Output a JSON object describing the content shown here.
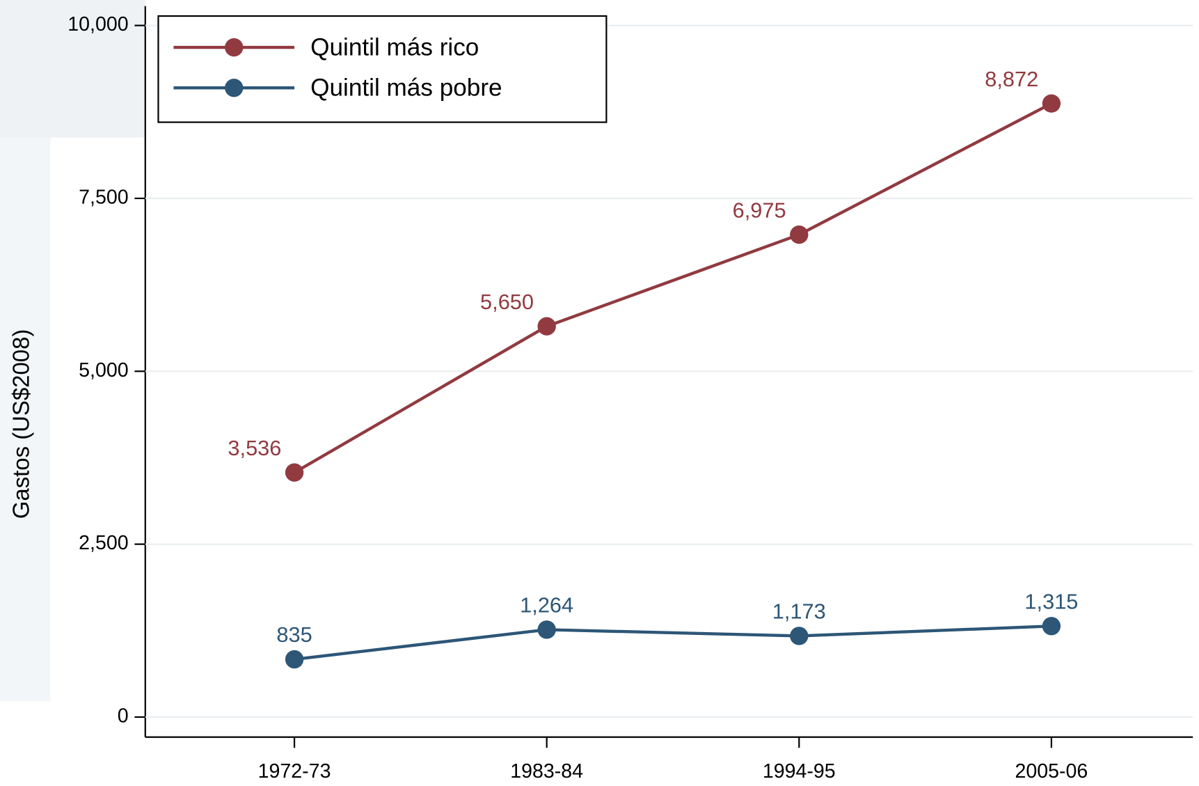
{
  "chart_data": {
    "type": "line",
    "y_label": "Gastos (US$2008)",
    "categories": [
      "1972-73",
      "1983-84",
      "1994-95",
      "2005-06"
    ],
    "series": [
      {
        "name": "Quintil más rico",
        "color": "#913a40",
        "values": [
          3536,
          5650,
          6975,
          8872
        ],
        "value_labels": [
          "3,536",
          "5,650",
          "6,975",
          "8,872"
        ]
      },
      {
        "name": "Quintil más pobre",
        "color": "#2d5677",
        "values": [
          835,
          1264,
          1173,
          1315
        ],
        "value_labels": [
          "835",
          "1,264",
          "1,173",
          "1,315"
        ]
      }
    ],
    "ylim": [
      -290,
      10280
    ],
    "yticks": [
      0,
      {
        "value": 2500,
        "label": "2,500"
      },
      {
        "value": 5000,
        "label": "5,000"
      },
      {
        "value": 7500,
        "label": "7,500"
      },
      {
        "value": 10000,
        "label": "10,000"
      }
    ],
    "grid": true,
    "legend": "top-left"
  }
}
